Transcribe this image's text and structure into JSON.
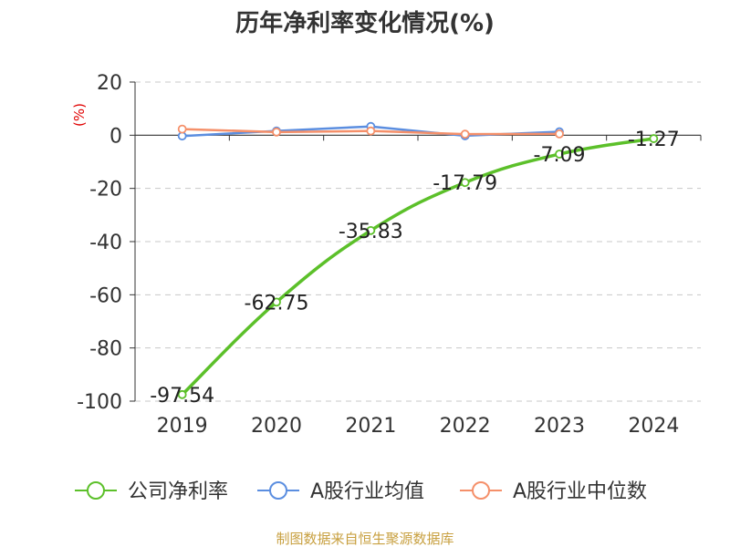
{
  "chart_data": {
    "type": "line",
    "title": "历年净利率变化情况(%)",
    "unit_label": "(%)",
    "categories": [
      "2019",
      "2020",
      "2021",
      "2022",
      "2023",
      "2024"
    ],
    "ylim": [
      -100,
      20
    ],
    "yticks": [
      20,
      0,
      -20,
      -40,
      -60,
      -80,
      -100
    ],
    "grid": true,
    "legend_position": "bottom",
    "series": [
      {
        "name": "公司净利率",
        "color": "#5cc02a",
        "values": [
          -97.54,
          -62.75,
          -35.83,
          -17.79,
          -7.09,
          -1.27
        ],
        "labels": [
          "-97.54",
          "-62.75",
          "-35.83",
          "-17.79",
          "-7.09",
          "-1.27"
        ]
      },
      {
        "name": "A股行业均值",
        "color": "#5b8ee0",
        "values": [
          -0.3,
          1.6,
          3.3,
          -0.2,
          1.3,
          null
        ]
      },
      {
        "name": "A股行业中位数",
        "color": "#f5906a",
        "values": [
          2.3,
          1.2,
          1.6,
          0.4,
          0.5,
          null
        ]
      }
    ],
    "source": "制图数据来自恒生聚源数据库"
  }
}
